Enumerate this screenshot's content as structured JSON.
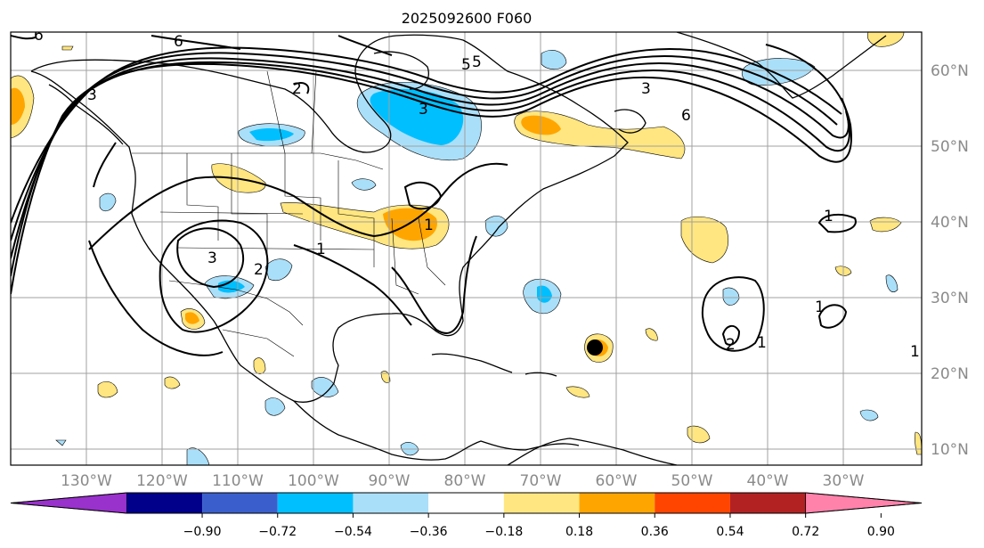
{
  "title": "2025092600 F060",
  "lat_labels": [
    "60°N",
    "50°N",
    "40°N",
    "30°N",
    "20°N",
    "10°N"
  ],
  "lon_labels": [
    "130°W",
    "120°W",
    "110°W",
    "100°W",
    "90°W",
    "80°W",
    "70°W",
    "60°W",
    "50°W",
    "40°W",
    "30°W"
  ],
  "colorbar": {
    "ticks": [
      "−0.90",
      "−0.72",
      "−0.54",
      "−0.36",
      "−0.18",
      "0.18",
      "0.36",
      "0.54",
      "0.72",
      "0.90"
    ],
    "colors": [
      "#9932cc",
      "#00008b",
      "#3a5fcd",
      "#00bfff",
      "#aadff9",
      "#ffffff",
      "#ffe680",
      "#ffa500",
      "#ff4500",
      "#b22222",
      "#ff82ab"
    ]
  },
  "contour_labels": [
    "6",
    "6",
    "3",
    "3",
    "2",
    "5",
    "6",
    "3",
    "1",
    "3",
    "2",
    "1",
    "1",
    "1",
    "2",
    "1",
    "1",
    "5"
  ],
  "marker_color": "#000000"
}
